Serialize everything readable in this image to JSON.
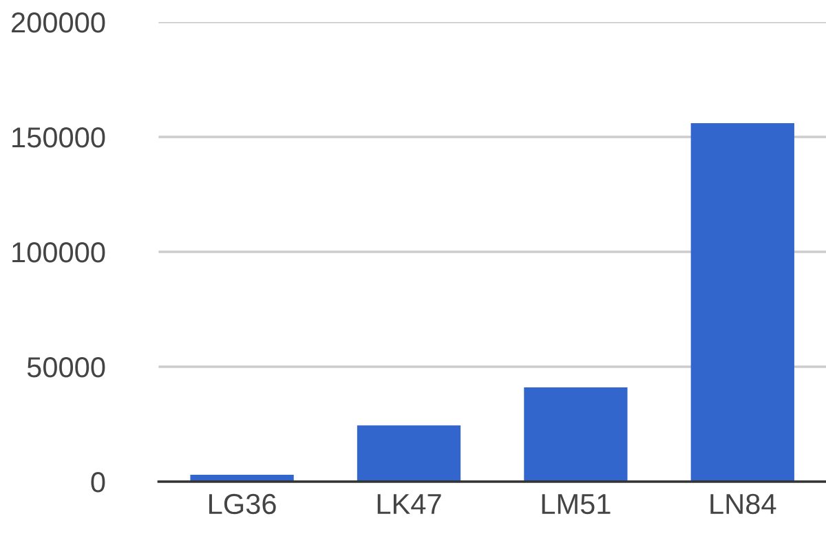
{
  "chart_data": {
    "type": "bar",
    "categories": [
      "LG36",
      "LK47",
      "LM51",
      "LN84"
    ],
    "values": [
      3000,
      24500,
      41000,
      156000
    ],
    "color": "#3366cc",
    "ylim": [
      0,
      200000
    ],
    "yticks": [
      0,
      50000,
      100000,
      150000,
      200000
    ],
    "grid": "y"
  }
}
